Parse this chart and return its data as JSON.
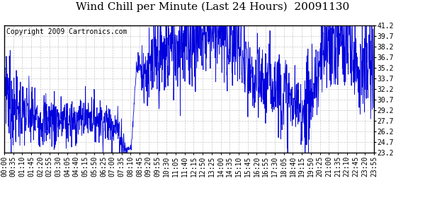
{
  "title": "Wind Chill per Minute (Last 24 Hours)  20091130",
  "copyright": "Copyright 2009 Cartronics.com",
  "ylim": [
    23.2,
    41.2
  ],
  "yticks": [
    23.2,
    24.7,
    26.2,
    27.7,
    29.2,
    30.7,
    32.2,
    33.7,
    35.2,
    36.7,
    38.2,
    39.7,
    41.2
  ],
  "line_color": "#0000dd",
  "bg_color": "#ffffff",
  "grid_color": "#bbbbbb",
  "title_fontsize": 11,
  "copyright_fontsize": 7,
  "tick_fontsize": 7,
  "xtick_labels": [
    "00:00",
    "00:35",
    "01:10",
    "01:45",
    "02:20",
    "02:55",
    "03:30",
    "04:05",
    "04:40",
    "05:15",
    "05:50",
    "06:25",
    "07:00",
    "07:35",
    "08:10",
    "08:45",
    "09:20",
    "09:55",
    "10:30",
    "11:05",
    "11:40",
    "12:15",
    "12:50",
    "13:25",
    "14:00",
    "14:35",
    "15:10",
    "15:45",
    "16:20",
    "16:55",
    "17:30",
    "18:05",
    "18:40",
    "19:15",
    "19:50",
    "20:25",
    "21:00",
    "21:35",
    "22:10",
    "22:45",
    "23:20",
    "23:55"
  ],
  "segments": [
    [
      0.0,
      0.08,
      35.0,
      35.0,
      0.5
    ],
    [
      0.08,
      0.5,
      34.0,
      29.5,
      3.5
    ],
    [
      0.5,
      2.0,
      29.5,
      28.0,
      2.5
    ],
    [
      2.0,
      4.5,
      28.0,
      27.5,
      2.0
    ],
    [
      4.5,
      5.5,
      27.5,
      28.5,
      1.5
    ],
    [
      5.5,
      7.3,
      28.5,
      27.0,
      1.5
    ],
    [
      7.3,
      7.9,
      27.0,
      23.5,
      1.5
    ],
    [
      7.9,
      8.25,
      23.5,
      24.0,
      0.3
    ],
    [
      8.25,
      8.6,
      24.0,
      36.0,
      0.4
    ],
    [
      8.6,
      8.9,
      36.0,
      35.0,
      1.0
    ],
    [
      8.9,
      9.5,
      35.0,
      34.5,
      2.5
    ],
    [
      9.5,
      11.0,
      34.5,
      38.5,
      3.5
    ],
    [
      11.0,
      12.0,
      38.5,
      39.5,
      3.5
    ],
    [
      12.0,
      13.5,
      39.5,
      40.5,
      3.5
    ],
    [
      13.5,
      14.0,
      40.5,
      41.0,
      3.5
    ],
    [
      14.0,
      14.5,
      41.0,
      39.0,
      3.5
    ],
    [
      14.5,
      15.2,
      39.0,
      38.5,
      3.5
    ],
    [
      15.2,
      15.8,
      38.5,
      33.5,
      3.5
    ],
    [
      15.8,
      16.5,
      33.5,
      33.0,
      3.0
    ],
    [
      16.5,
      17.5,
      33.0,
      33.5,
      3.0
    ],
    [
      17.5,
      18.5,
      33.5,
      30.5,
      3.0
    ],
    [
      18.5,
      19.5,
      30.5,
      29.0,
      2.5
    ],
    [
      19.5,
      20.5,
      29.0,
      35.0,
      3.5
    ],
    [
      20.5,
      21.0,
      35.0,
      38.5,
      3.5
    ],
    [
      21.0,
      21.8,
      38.5,
      39.5,
      3.5
    ],
    [
      21.8,
      22.5,
      39.5,
      38.0,
      3.5
    ],
    [
      22.5,
      23.0,
      38.0,
      36.0,
      3.5
    ],
    [
      23.0,
      24.0,
      36.0,
      34.5,
      3.5
    ]
  ]
}
